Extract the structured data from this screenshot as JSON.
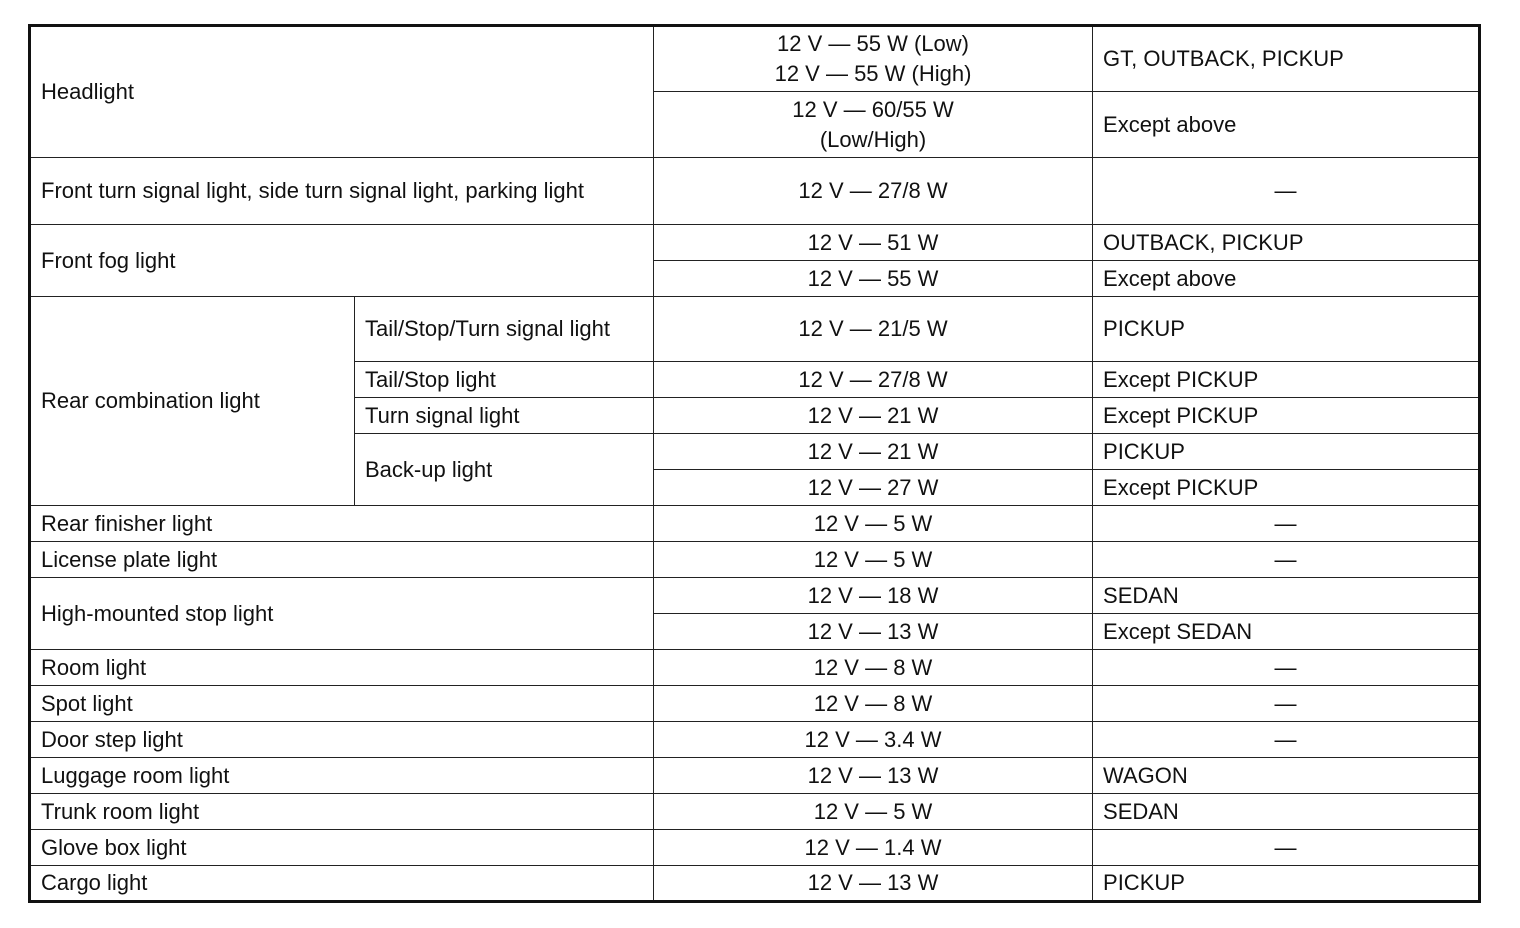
{
  "table": {
    "rows": [
      {
        "item": "Headlight",
        "spec": "12 V — 55 W (Low)\n12 V — 55 W (High)",
        "note": "GT, OUTBACK, PICKUP"
      },
      {
        "spec": "12 V — 60/55 W\n(Low/High)",
        "note": "Except above"
      },
      {
        "item": "Front turn signal light, side turn signal light, parking light",
        "spec": "12 V — 27/8 W",
        "note": "—"
      },
      {
        "item": "Front fog light",
        "spec": "12 V — 51 W",
        "note": "OUTBACK, PICKUP"
      },
      {
        "spec": "12 V — 55 W",
        "note": "Except above"
      },
      {
        "item": "Rear combination light",
        "sub": "Tail/Stop/Turn signal light",
        "spec": "12 V — 21/5 W",
        "note": "PICKUP"
      },
      {
        "sub": "Tail/Stop light",
        "spec": "12 V — 27/8 W",
        "note": "Except PICKUP"
      },
      {
        "sub": "Turn signal light",
        "spec": "12 V — 21 W",
        "note": "Except PICKUP"
      },
      {
        "sub": "Back-up light",
        "spec": "12 V — 21 W",
        "note": "PICKUP"
      },
      {
        "spec": "12 V — 27 W",
        "note": "Except PICKUP"
      },
      {
        "item": "Rear finisher light",
        "spec": "12 V — 5 W",
        "note": "—"
      },
      {
        "item": "License plate light",
        "spec": "12 V — 5 W",
        "note": "—"
      },
      {
        "item": "High-mounted stop light",
        "spec": "12 V — 18 W",
        "note": "SEDAN"
      },
      {
        "spec": "12 V — 13 W",
        "note": "Except SEDAN"
      },
      {
        "item": "Room light",
        "spec": "12 V — 8 W",
        "note": "—"
      },
      {
        "item": "Spot light",
        "spec": "12 V — 8 W",
        "note": "—"
      },
      {
        "item": "Door step light",
        "spec": "12 V — 3.4 W",
        "note": "—"
      },
      {
        "item": "Luggage room light",
        "spec": "12 V — 13 W",
        "note": "WAGON"
      },
      {
        "item": "Trunk room light",
        "spec": "12 V — 5 W",
        "note": "SEDAN"
      },
      {
        "item": "Glove box light",
        "spec": "12 V — 1.4 W",
        "note": "—"
      },
      {
        "item": "Cargo light",
        "spec": "12 V — 13 W",
        "note": "PICKUP"
      }
    ]
  }
}
